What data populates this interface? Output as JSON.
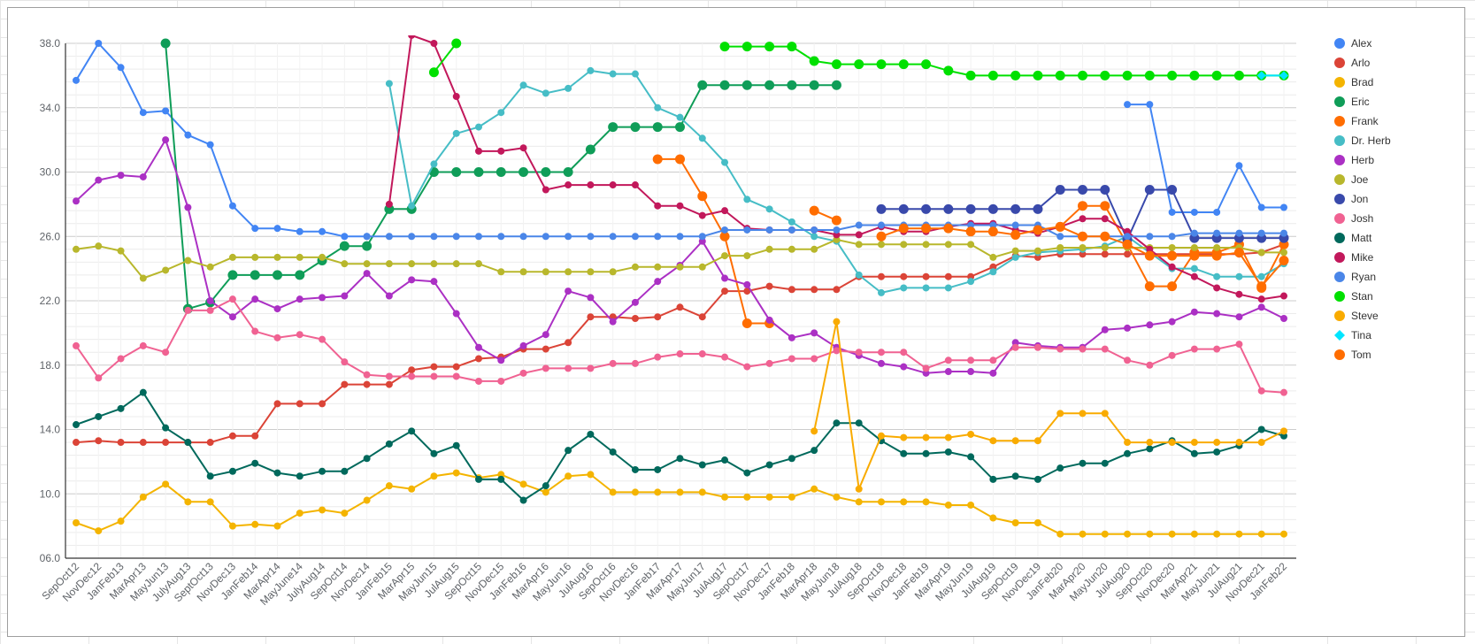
{
  "chart_data": {
    "type": "line",
    "title": "",
    "xlabel": "",
    "ylabel": "",
    "ylim": [
      6,
      38
    ],
    "y_ticks": [
      "06.0",
      "10.0",
      "14.0",
      "18.0",
      "22.0",
      "26.0",
      "30.0",
      "34.0",
      "38.0"
    ],
    "grid": true,
    "legend_position": "right",
    "categories": [
      "SepOct12",
      "NovDec12",
      "JanFeb13",
      "MarApr13",
      "MayJun13",
      "JulyAug13",
      "SeptOct13",
      "NovDec13",
      "JanFeb14",
      "MarApr14",
      "MayJune14",
      "JulyAug14",
      "SepOct14",
      "NovDec14",
      "JanFeb15",
      "MarApr15",
      "MayJun15",
      "JulAug15",
      "SepOct15",
      "NovDec15",
      "JanFeb16",
      "MarApr16",
      "MayJun16",
      "JulAug16",
      "SepOct16",
      "NovDec16",
      "JanFeb17",
      "MarApr17",
      "MayJun17",
      "JulAug17",
      "SepOct17",
      "NovDec17",
      "JanFeb18",
      "MarApr18",
      "MayJun18",
      "JulAug18",
      "SepOct18",
      "NovDec18",
      "JanFeb19",
      "MarApr19",
      "MayJun19",
      "JulAug19",
      "SepOct19",
      "NovDec19",
      "JanFeb20",
      "MarApr20",
      "MayJun20",
      "JulAug20",
      "SepOct20",
      "NovDec20",
      "MarApr21",
      "MayJun21",
      "JulAug21",
      "NovDec21",
      "JanFeb22"
    ],
    "x_tick_labels": [
      "SepOct12",
      "NovDec12",
      "JanFeb13",
      "MarApr13",
      "MayJun13",
      "JulyAug13",
      "SeptOct13",
      "NovDec13",
      "JanFeb14",
      "MarApr14",
      "MayJune14",
      "JulyAug14",
      "SepOct14",
      "NovDec14",
      "JanFeb15",
      "MarApr15",
      "MayJun15",
      "JulAug15",
      "SepOct15",
      "NovDec15",
      "JanFeb16",
      "MarApr16",
      "MayJun16",
      "JulAug16",
      "SepOct16",
      "NovDec16",
      "JanFeb17",
      "MarApr17",
      "MayJun17",
      "JulAug17",
      "SepOct17",
      "NovDec17",
      "JanFeb18",
      "MarApr18",
      "MayJun18",
      "JulAug18",
      "SepOct18",
      "NovDec18",
      "JanFeb19",
      "MarApr19",
      "MayJun19",
      "JulAug19",
      "SepOct19",
      "NovDec19",
      "JanFeb20",
      "MarApr20",
      "MayJun20",
      "JulAug20",
      "SepOct20",
      "NovDec20",
      "MarApr21",
      "MayJun21",
      "JulAug21",
      "NovDec21",
      "JanFeb22"
    ],
    "series": [
      {
        "name": "Alex",
        "color": "#4285f4",
        "values": [
          35.7,
          38.0,
          36.5,
          33.7,
          33.8,
          32.3,
          31.7,
          27.9,
          26.5,
          26.5,
          26.3,
          26.3,
          26.0,
          26.0,
          null,
          null,
          null,
          null,
          null,
          null,
          null,
          null,
          null,
          null,
          null,
          null,
          null,
          null,
          null,
          null,
          null,
          null,
          null,
          null,
          null,
          null,
          null,
          null,
          null,
          null,
          null,
          null,
          null,
          null,
          null,
          null,
          null,
          34.2,
          34.2,
          27.5,
          27.5,
          27.5,
          30.4,
          27.8,
          27.8
        ]
      },
      {
        "name": "Arlo",
        "color": "#db4437",
        "values": [
          13.2,
          13.3,
          13.2,
          13.2,
          13.2,
          13.2,
          13.2,
          13.6,
          13.6,
          15.6,
          15.6,
          15.6,
          16.8,
          16.8,
          16.8,
          17.7,
          17.9,
          17.9,
          18.4,
          18.5,
          19.0,
          19.0,
          19.4,
          21.0,
          21.0,
          20.9,
          21.0,
          21.6,
          21.0,
          22.6,
          22.6,
          22.9,
          22.7,
          22.7,
          22.7,
          23.5,
          23.5,
          23.5,
          23.5,
          23.5,
          23.5,
          24.1,
          24.8,
          24.7,
          24.9,
          24.9,
          24.9,
          24.9,
          24.9,
          24.9,
          24.9,
          24.9,
          24.9,
          25.0,
          25.5
        ]
      },
      {
        "name": "Brad",
        "color": "#f4b400",
        "values": [
          8.2,
          7.7,
          8.3,
          9.8,
          10.6,
          9.5,
          9.5,
          8.0,
          8.1,
          8.0,
          8.8,
          9.0,
          8.8,
          9.6,
          10.5,
          10.3,
          11.1,
          11.3,
          11.0,
          11.2,
          10.6,
          10.1,
          11.1,
          11.2,
          10.1,
          10.1,
          10.1,
          10.1,
          10.1,
          9.8,
          9.8,
          9.8,
          9.8,
          10.3,
          9.8,
          9.5,
          9.5,
          9.5,
          9.5,
          9.3,
          9.3,
          8.5,
          8.2,
          8.2,
          7.5,
          7.5,
          7.5,
          7.5,
          7.5,
          7.5,
          7.5,
          7.5,
          7.5,
          7.5,
          7.5
        ]
      },
      {
        "name": "Eric",
        "color": "#0f9d58",
        "values": [
          null,
          null,
          null,
          null,
          38.0,
          21.5,
          21.9,
          23.6,
          23.6,
          23.6,
          23.6,
          24.5,
          25.4,
          25.4,
          27.7,
          27.7,
          30.0,
          30.0,
          30.0,
          30.0,
          30.0,
          30.0,
          30.0,
          31.4,
          32.8,
          32.8,
          32.8,
          32.8,
          35.4,
          35.4,
          35.4,
          35.4,
          35.4,
          35.4,
          35.4,
          null,
          null,
          null,
          null,
          null,
          null,
          null,
          null,
          null,
          null,
          null,
          null,
          null,
          null,
          null,
          null,
          null,
          null,
          null,
          null
        ]
      },
      {
        "name": "Frank",
        "color": "#ff6d01",
        "values": [
          null,
          null,
          null,
          null,
          null,
          null,
          null,
          null,
          null,
          null,
          null,
          null,
          null,
          null,
          null,
          null,
          null,
          null,
          null,
          null,
          null,
          null,
          null,
          null,
          null,
          null,
          30.8,
          30.8,
          28.5,
          26.0,
          20.6,
          20.6,
          null,
          null,
          null,
          null,
          null,
          null,
          null,
          null,
          null,
          null,
          null,
          null,
          26.6,
          27.9,
          27.9,
          25.5,
          22.9,
          22.9,
          25.0,
          25.0,
          25.5,
          22.8,
          25.5
        ]
      },
      {
        "name": "Dr. Herb",
        "color": "#46bdc6",
        "values": [
          null,
          null,
          null,
          null,
          null,
          null,
          null,
          null,
          null,
          null,
          null,
          null,
          null,
          null,
          35.5,
          27.9,
          30.5,
          32.4,
          32.8,
          33.7,
          35.4,
          34.9,
          35.2,
          36.3,
          36.1,
          36.1,
          34.0,
          33.4,
          32.1,
          30.6,
          28.3,
          27.7,
          26.9,
          26.0,
          25.7,
          23.6,
          22.5,
          22.8,
          22.8,
          22.8,
          23.2,
          23.8,
          24.7,
          25.0,
          25.1,
          25.2,
          25.4,
          26.0,
          25.0,
          24.0,
          24.0,
          23.5,
          23.5,
          23.5,
          24.3
        ]
      },
      {
        "name": "Herb",
        "color": "#ab30c4",
        "values": [
          28.2,
          29.5,
          29.8,
          29.7,
          32.0,
          27.8,
          22.0,
          21.0,
          22.1,
          21.5,
          22.1,
          22.2,
          22.3,
          23.7,
          22.3,
          23.3,
          23.2,
          21.2,
          19.1,
          18.3,
          19.2,
          19.9,
          22.6,
          22.2,
          20.7,
          21.9,
          23.2,
          24.2,
          25.7,
          23.4,
          23.0,
          20.8,
          19.7,
          20.0,
          19.1,
          18.6,
          18.1,
          17.9,
          17.5,
          17.6,
          17.6,
          17.5,
          19.4,
          19.2,
          19.1,
          19.1,
          20.2,
          20.3,
          20.5,
          20.7,
          21.3,
          21.2,
          21.0,
          21.6,
          20.9
        ]
      },
      {
        "name": "Joe",
        "color": "#b8b72c",
        "values": [
          25.2,
          25.4,
          25.1,
          23.4,
          23.9,
          24.5,
          24.1,
          24.7,
          24.7,
          24.7,
          24.7,
          24.7,
          24.3,
          24.3,
          24.3,
          24.3,
          24.3,
          24.3,
          24.3,
          23.8,
          23.8,
          23.8,
          23.8,
          23.8,
          23.8,
          24.1,
          24.1,
          24.1,
          24.1,
          24.8,
          24.8,
          25.2,
          25.2,
          25.2,
          25.8,
          25.5,
          25.5,
          25.5,
          25.5,
          25.5,
          25.5,
          24.7,
          25.1,
          25.1,
          25.3,
          25.3,
          25.3,
          25.3,
          25.3,
          25.3,
          25.3,
          25.3,
          25.3,
          25.0,
          25.0
        ]
      },
      {
        "name": "Jon",
        "color": "#3949ab",
        "values": [
          null,
          null,
          null,
          null,
          null,
          null,
          null,
          null,
          null,
          null,
          null,
          null,
          null,
          null,
          null,
          null,
          null,
          null,
          null,
          null,
          null,
          null,
          null,
          null,
          null,
          null,
          null,
          null,
          null,
          null,
          null,
          null,
          null,
          null,
          null,
          null,
          27.7,
          27.7,
          27.7,
          27.7,
          27.7,
          27.7,
          27.7,
          27.7,
          28.9,
          28.9,
          28.9,
          25.8,
          28.9,
          28.9,
          25.9,
          25.9,
          25.9,
          25.9,
          25.9
        ]
      },
      {
        "name": "Josh",
        "color": "#f06292",
        "values": [
          19.2,
          17.2,
          18.4,
          19.2,
          18.8,
          21.4,
          21.4,
          22.1,
          20.1,
          19.7,
          19.9,
          19.6,
          18.2,
          17.4,
          17.3,
          17.3,
          17.3,
          17.3,
          17.0,
          17.0,
          17.5,
          17.8,
          17.8,
          17.8,
          18.1,
          18.1,
          18.5,
          18.7,
          18.7,
          18.5,
          17.9,
          18.1,
          18.4,
          18.4,
          18.9,
          18.8,
          18.8,
          18.8,
          17.8,
          18.3,
          18.3,
          18.3,
          19.1,
          19.1,
          19.0,
          19.0,
          19.0,
          18.3,
          18.0,
          18.6,
          19.0,
          19.0,
          19.3,
          16.4,
          16.3
        ]
      },
      {
        "name": "Matt",
        "color": "#00695c",
        "values": [
          14.3,
          14.8,
          15.3,
          16.3,
          14.1,
          13.2,
          11.1,
          11.4,
          11.9,
          11.3,
          11.1,
          11.4,
          11.4,
          12.2,
          13.1,
          13.9,
          12.5,
          13.0,
          10.9,
          10.9,
          9.6,
          10.5,
          12.7,
          13.7,
          12.6,
          11.5,
          11.5,
          12.2,
          11.8,
          12.1,
          11.3,
          11.8,
          12.2,
          12.7,
          14.4,
          14.4,
          13.3,
          12.5,
          12.5,
          12.6,
          12.3,
          10.9,
          11.1,
          10.9,
          11.6,
          11.9,
          11.9,
          12.5,
          12.8,
          13.3,
          12.5,
          12.6,
          13.0,
          14.0,
          13.6
        ]
      },
      {
        "name": "Mike",
        "color": "#c2185b",
        "values": [
          null,
          null,
          null,
          null,
          null,
          null,
          null,
          null,
          null,
          null,
          null,
          null,
          null,
          null,
          28.0,
          38.5,
          38.0,
          34.7,
          31.3,
          31.3,
          31.5,
          28.9,
          29.2,
          29.2,
          29.2,
          29.2,
          27.9,
          27.9,
          27.3,
          27.6,
          26.5,
          26.4,
          26.4,
          26.4,
          26.1,
          26.1,
          26.6,
          26.3,
          26.3,
          26.6,
          26.8,
          26.8,
          26.4,
          26.2,
          26.6,
          27.1,
          27.1,
          26.3,
          25.2,
          24.1,
          23.5,
          22.8,
          22.4,
          22.1,
          22.3
        ]
      },
      {
        "name": "Ryan",
        "color": "#4a86e8",
        "values": [
          null,
          null,
          null,
          null,
          null,
          null,
          null,
          null,
          null,
          null,
          null,
          null,
          null,
          26.0,
          26.0,
          26.0,
          26.0,
          26.0,
          26.0,
          26.0,
          26.0,
          26.0,
          26.0,
          26.0,
          26.0,
          26.0,
          26.0,
          26.0,
          26.0,
          26.4,
          26.4,
          26.4,
          26.4,
          26.4,
          26.4,
          26.7,
          26.7,
          26.7,
          26.7,
          26.7,
          26.7,
          26.7,
          26.7,
          26.7,
          26.0,
          26.0,
          26.0,
          26.0,
          26.0,
          26.0,
          26.2,
          26.2,
          26.2,
          26.2,
          26.2
        ]
      },
      {
        "name": "Stan",
        "color": "#00e000",
        "values": [
          null,
          null,
          null,
          null,
          null,
          null,
          null,
          null,
          null,
          null,
          null,
          null,
          null,
          null,
          null,
          null,
          36.2,
          38.0,
          null,
          null,
          null,
          null,
          null,
          null,
          null,
          null,
          null,
          null,
          null,
          37.8,
          37.8,
          37.8,
          37.8,
          36.9,
          36.7,
          36.7,
          36.7,
          36.7,
          36.7,
          36.3,
          36.0,
          36.0,
          36.0,
          36.0,
          36.0,
          36.0,
          36.0,
          36.0,
          36.0,
          36.0,
          36.0,
          36.0,
          36.0,
          36.0,
          36.0
        ]
      },
      {
        "name": "Steve",
        "color": "#f9ab00",
        "values": [
          null,
          null,
          null,
          null,
          null,
          null,
          null,
          null,
          null,
          null,
          null,
          null,
          null,
          null,
          null,
          null,
          null,
          null,
          null,
          null,
          null,
          null,
          null,
          null,
          null,
          null,
          null,
          null,
          null,
          null,
          null,
          null,
          null,
          13.9,
          20.7,
          10.3,
          13.6,
          13.5,
          13.5,
          13.5,
          13.7,
          13.3,
          13.3,
          13.3,
          15.0,
          15.0,
          15.0,
          13.2,
          13.2,
          13.2,
          13.2,
          13.2,
          13.2,
          13.2,
          13.9
        ]
      },
      {
        "name": "Tina",
        "color": "#00e5ff",
        "values": [
          null,
          null,
          null,
          null,
          null,
          null,
          null,
          null,
          null,
          null,
          null,
          null,
          null,
          null,
          null,
          null,
          null,
          null,
          null,
          null,
          null,
          null,
          null,
          null,
          null,
          null,
          null,
          null,
          null,
          null,
          null,
          null,
          null,
          null,
          null,
          null,
          null,
          null,
          null,
          null,
          null,
          null,
          null,
          null,
          null,
          null,
          null,
          null,
          null,
          null,
          null,
          null,
          null,
          36.0,
          36.0
        ]
      },
      {
        "name": "Tom",
        "color": "#ff6d00",
        "values": [
          null,
          null,
          null,
          null,
          null,
          null,
          null,
          null,
          null,
          null,
          null,
          null,
          null,
          null,
          null,
          null,
          null,
          null,
          null,
          null,
          null,
          null,
          null,
          null,
          null,
          null,
          null,
          null,
          null,
          null,
          null,
          null,
          null,
          27.6,
          27.0,
          null,
          26.0,
          26.5,
          26.5,
          26.5,
          26.3,
          26.3,
          26.1,
          26.4,
          26.6,
          26.0,
          26.0,
          25.5,
          24.8,
          24.8,
          24.8,
          24.8,
          25.0,
          22.9,
          24.5
        ]
      }
    ]
  }
}
